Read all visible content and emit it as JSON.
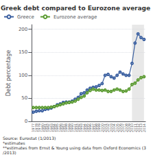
{
  "chart_data": {
    "type": "line",
    "title": "Greek debt compared to Eurozone average",
    "ylabel": "Debt percentage",
    "annotations": [
      "Source: Eurostat (1/2013)",
      "*estimates",
      "**estimates from Ernst & Young using data from Oxford Economics (3/2013)"
    ],
    "categories": [
      "1977",
      "1978",
      "1979",
      "1980",
      "1981",
      "1982",
      "1983",
      "1984",
      "1985",
      "1986",
      "1987",
      "1988",
      "1989",
      "1990",
      "1991",
      "1992",
      "1993",
      "1994",
      "1995",
      "1996",
      "1997",
      "1998",
      "1999",
      "2000",
      "2001",
      "2002",
      "2003",
      "2004",
      "2005",
      "2006",
      "2007",
      "2008",
      "2009",
      "2010",
      "2011",
      "2012",
      "2013",
      "2014"
    ],
    "shaded_from": "2010",
    "series": [
      {
        "name": "Greece",
        "color": "#3a5fa0",
        "marker": "circle",
        "values": [
          20,
          22,
          23,
          23,
          26,
          27,
          29,
          32,
          36,
          38,
          41,
          42,
          42,
          44,
          48,
          52,
          60,
          62,
          68,
          72,
          74,
          75,
          78,
          82,
          100,
          102,
          97,
          94,
          100,
          107,
          103,
          100,
          100,
          126,
          170,
          190,
          182,
          178
        ]
      },
      {
        "name": "Eurozone average",
        "color": "#5a9a30",
        "marker": "circle",
        "values": [
          30,
          30,
          30,
          30,
          30,
          30,
          31,
          32,
          34,
          36,
          38,
          40,
          41,
          42,
          44,
          48,
          52,
          55,
          62,
          67,
          70,
          68,
          68,
          67,
          68,
          65,
          65,
          68,
          70,
          68,
          65,
          66,
          70,
          80,
          83,
          90,
          95,
          97
        ]
      }
    ],
    "ylim": [
      0,
      210
    ],
    "yticks": [
      0,
      50,
      100,
      150,
      200
    ],
    "grid": true,
    "legend": "upper left"
  }
}
